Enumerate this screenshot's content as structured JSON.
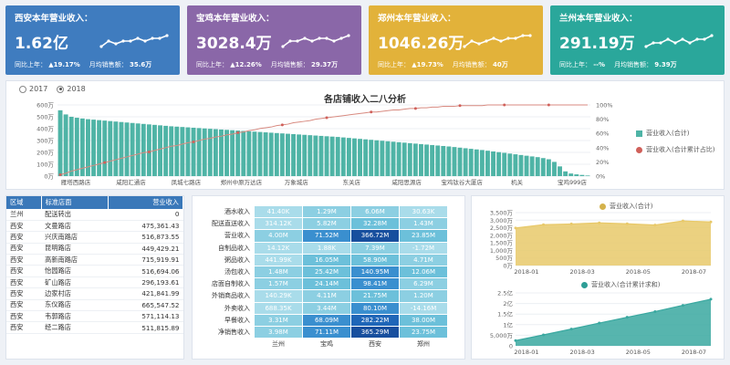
{
  "kpis": [
    {
      "title": "西安本年营业收入：",
      "value": "1.62亿",
      "yoy_label": "同比上年：",
      "yoy": "▲19.17%",
      "avg_label": "月均销售额：",
      "avg": "35.6万",
      "color": "#3f7cbf",
      "spark": [
        4,
        6,
        5,
        6,
        6,
        7,
        6,
        7,
        7,
        8
      ]
    },
    {
      "title": "宝鸡本年营业收入：",
      "value": "3028.4万",
      "yoy_label": "同比上年：",
      "yoy": "▲12.26%",
      "avg_label": "月均销售额：",
      "avg": "29.37万",
      "color": "#8a67a8",
      "spark": [
        4,
        6,
        6,
        7,
        6,
        7,
        7,
        6,
        7,
        8
      ]
    },
    {
      "title": "郑州本年营业收入：",
      "value": "1046.26万",
      "yoy_label": "同比上年：",
      "yoy": "▲19.73%",
      "avg_label": "月均销售额：",
      "avg": "40万",
      "color": "#e2b23a",
      "spark": [
        4,
        6,
        5,
        6,
        7,
        6,
        7,
        7,
        8,
        8
      ]
    },
    {
      "title": "兰州本年营业收入：",
      "value": "291.19万",
      "yoy_label": "同比上年：",
      "yoy": "--%",
      "avg_label": "月均销售额：",
      "avg": "9.39万",
      "color": "#2aa79b",
      "spark": [
        5,
        6,
        6,
        7,
        6,
        7,
        6,
        7,
        7,
        8
      ]
    }
  ],
  "main": {
    "radio": [
      "2017",
      "2018"
    ],
    "title": "各店铺收入二八分析",
    "legend": [
      "营业收入(合计)",
      "营业收入(合计累计占比)"
    ]
  },
  "chart_data": [
    {
      "type": "bar",
      "title": "各店铺收入二八分析",
      "series": [
        {
          "name": "营业收入(合计)",
          "type": "bar",
          "values": [
            555,
            520,
            500,
            492,
            486,
            480,
            476,
            472,
            468,
            464,
            460,
            456,
            452,
            448,
            444,
            440,
            436,
            432,
            428,
            424,
            420,
            417,
            414,
            411,
            408,
            405,
            402,
            399,
            396,
            393,
            390,
            387,
            384,
            381,
            378,
            375,
            372,
            369,
            366,
            363,
            360,
            357,
            354,
            351,
            348,
            345,
            342,
            339,
            336,
            333,
            330,
            326,
            322,
            318,
            314,
            310,
            306,
            302,
            298,
            294,
            290,
            286,
            282,
            278,
            274,
            270,
            266,
            262,
            258,
            254,
            250,
            245,
            240,
            235,
            230,
            225,
            220,
            214,
            208,
            202,
            196,
            190,
            184,
            178,
            172,
            166,
            160,
            152,
            142,
            120,
            82,
            40,
            22,
            15,
            10,
            5
          ]
        },
        {
          "name": "营业收入(合计累计占比)",
          "type": "line",
          "axis": "right",
          "values": [
            2,
            4,
            7,
            9,
            11,
            13,
            15,
            17,
            19,
            21,
            23,
            25,
            27,
            29,
            31,
            33,
            34,
            36,
            38,
            40,
            42,
            43,
            45,
            47,
            48,
            50,
            52,
            53,
            55,
            56,
            58,
            59,
            61,
            62,
            64,
            65,
            67,
            68,
            69,
            71,
            72,
            73,
            75,
            76,
            77,
            78,
            80,
            81,
            82,
            83,
            84,
            85,
            86,
            87,
            88,
            89,
            90,
            90,
            91,
            92,
            93,
            93,
            94,
            95,
            95,
            96,
            96,
            97,
            97,
            98,
            98,
            98,
            99,
            99,
            99,
            99,
            99,
            100,
            100,
            100,
            100,
            100,
            100,
            100,
            100,
            100,
            100,
            100,
            100,
            100,
            100,
            100,
            100,
            100,
            100,
            100
          ]
        }
      ],
      "x_tick_labels": [
        "雁塔西路店",
        "咸阳汇通店",
        "凤城七路店",
        "郑州中原万达店",
        "万象城店",
        "东关店",
        "咸阳思源店",
        "宝鸡钛谷大厦店",
        "机关",
        "宝鸡999店"
      ],
      "y_ticks_left": [
        "0万",
        "100万",
        "200万",
        "300万",
        "400万",
        "500万",
        "600万"
      ],
      "y_ticks_right": [
        "0%",
        "20%",
        "40%",
        "60%",
        "80%",
        "100%"
      ],
      "ylim_left": [
        0,
        600
      ],
      "ylim_right": [
        0,
        100
      ],
      "legend_position": "right"
    },
    {
      "type": "area",
      "legend": "营业收入(合计)",
      "x_ticks": [
        "2018-01",
        "2018-03",
        "2018-05",
        "2018-07"
      ],
      "y_ticks": [
        "0万",
        "500万",
        "1,000万",
        "1,500万",
        "2,000万",
        "2,500万",
        "3,000万",
        "3,500万"
      ],
      "ylim": [
        0,
        3500
      ],
      "values": [
        2480,
        2700,
        2750,
        2820,
        2760,
        2680,
        2950,
        2880
      ],
      "color": "#e8c96a"
    },
    {
      "type": "area",
      "legend": "营业收入(合计累计求和)",
      "x_ticks": [
        "2018-01",
        "2018-03",
        "2018-05",
        "2018-07"
      ],
      "y_ticks": [
        "0",
        "5,000万",
        "1亿",
        "1.5亿",
        "2亿",
        "2.5亿"
      ],
      "ylim": [
        0,
        25000
      ],
      "values": [
        2480,
        5180,
        7930,
        10750,
        13510,
        16190,
        19140,
        22020
      ],
      "color": "#3aa8a0"
    }
  ],
  "store_table": {
    "headers": [
      "区域",
      "标准店面",
      "营业收入"
    ],
    "rows": [
      [
        "兰州",
        "配送转出",
        "0"
      ],
      [
        "西安",
        "文曼路店",
        "475,361.43"
      ],
      [
        "西安",
        "兴庆南路店",
        "516,873.55"
      ],
      [
        "西安",
        "昆明路店",
        "449,429.21"
      ],
      [
        "西安",
        "高新南路店",
        "715,919.91"
      ],
      [
        "西安",
        "怡园路店",
        "516,694.06"
      ],
      [
        "西安",
        "矿山路店",
        "296,193.61"
      ],
      [
        "西安",
        "边家村店",
        "421,841.99"
      ],
      [
        "西安",
        "东仪路店",
        "665,547.52"
      ],
      [
        "西安",
        "韦郭路店",
        "571,114.13"
      ],
      [
        "西安",
        "经二路店",
        "511,815.89"
      ]
    ]
  },
  "heat_table": {
    "row_labels": [
      "酒水收入",
      "配送直送收入",
      "营业收入",
      "自制品收入",
      "粥品收入",
      "汤包收入",
      "店面自制收入",
      "外销商品收入",
      "外卖收入",
      "早餐收入",
      "净销售收入"
    ],
    "col_labels": [
      "兰州",
      "宝鸡",
      "西安",
      "郑州"
    ],
    "cells": [
      [
        "41.40K",
        "1.29M",
        "6.06M",
        "30.63K"
      ],
      [
        "314.12K",
        "5.82M",
        "32.28M",
        "1.43M"
      ],
      [
        "4.00M",
        "71.52M",
        "366.72M",
        "23.85M"
      ],
      [
        "14.12K",
        "1.88K",
        "7.39M",
        "-1.72M"
      ],
      [
        "441.99K",
        "16.05M",
        "58.90M",
        "4.71M"
      ],
      [
        "1.48M",
        "25.42M",
        "140.95M",
        "12.06M"
      ],
      [
        "1.57M",
        "24.14M",
        "98.41M",
        "6.29M"
      ],
      [
        "140.29K",
        "4.11M",
        "21.75M",
        "1.20M"
      ],
      [
        "688.35K",
        "3.44M",
        "80.10M",
        "-14.16M"
      ],
      [
        "3.31M",
        "68.09M",
        "282.22M",
        "38.00M"
      ],
      [
        "3.98M",
        "71.11M",
        "365.29M",
        "23.75M"
      ]
    ],
    "levels": [
      [
        1,
        2,
        2,
        1
      ],
      [
        1,
        2,
        3,
        2
      ],
      [
        2,
        4,
        6,
        3
      ],
      [
        1,
        1,
        2,
        1
      ],
      [
        1,
        3,
        3,
        2
      ],
      [
        2,
        3,
        4,
        3
      ],
      [
        2,
        3,
        4,
        2
      ],
      [
        1,
        2,
        3,
        2
      ],
      [
        1,
        2,
        4,
        1
      ],
      [
        2,
        4,
        5,
        3
      ],
      [
        2,
        4,
        6,
        3
      ]
    ]
  }
}
